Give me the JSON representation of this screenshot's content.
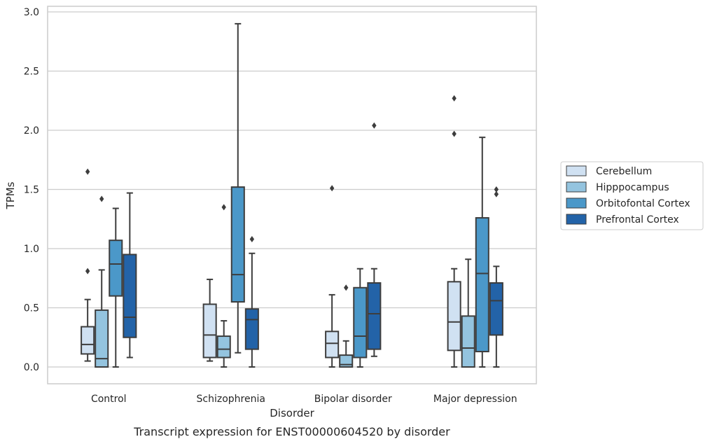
{
  "chart_data": {
    "type": "box",
    "caption": "Transcript expression for ENST00000604520 by disorder",
    "xlabel": "Disorder",
    "ylabel": "TPMs",
    "ylim": [
      -0.14,
      3.05
    ],
    "yticks": [
      "0.0",
      "0.5",
      "1.0",
      "1.5",
      "2.0",
      "2.5",
      "3.0"
    ],
    "grid": "horizontal",
    "legend_position": "right",
    "categories": [
      "Control",
      "Schizophrenia",
      "Bipolar disorder",
      "Major depression"
    ],
    "series": [
      {
        "name": "Cerebellum",
        "color": "#d0e1f2",
        "boxes": [
          {
            "whislo": 0.05,
            "q1": 0.11,
            "med": 0.19,
            "q3": 0.34,
            "whishi": 0.57,
            "fliers": [
              0.81,
              1.65
            ]
          },
          {
            "whislo": 0.05,
            "q1": 0.08,
            "med": 0.27,
            "q3": 0.53,
            "whishi": 0.74,
            "fliers": []
          },
          {
            "whislo": 0.0,
            "q1": 0.08,
            "med": 0.2,
            "q3": 0.3,
            "whishi": 0.61,
            "fliers": [
              1.51
            ]
          },
          {
            "whislo": 0.0,
            "q1": 0.14,
            "med": 0.38,
            "q3": 0.72,
            "whishi": 0.83,
            "fliers": [
              1.97,
              2.27
            ]
          }
        ]
      },
      {
        "name": "Hipppocampus",
        "color": "#94c4df",
        "boxes": [
          {
            "whislo": 0.0,
            "q1": 0.0,
            "med": 0.07,
            "q3": 0.48,
            "whishi": 0.82,
            "fliers": [
              1.42
            ]
          },
          {
            "whislo": 0.0,
            "q1": 0.08,
            "med": 0.15,
            "q3": 0.26,
            "whishi": 0.39,
            "fliers": [
              1.35
            ]
          },
          {
            "whislo": 0.0,
            "q1": 0.0,
            "med": 0.02,
            "q3": 0.1,
            "whishi": 0.22,
            "fliers": [
              0.67
            ]
          },
          {
            "whislo": 0.0,
            "q1": 0.0,
            "med": 0.16,
            "q3": 0.43,
            "whishi": 0.91,
            "fliers": []
          }
        ]
      },
      {
        "name": "Orbitofontal Cortex",
        "color": "#4b98c9",
        "boxes": [
          {
            "whislo": 0.0,
            "q1": 0.6,
            "med": 0.87,
            "q3": 1.07,
            "whishi": 1.34,
            "fliers": []
          },
          {
            "whislo": 0.12,
            "q1": 0.55,
            "med": 0.78,
            "q3": 1.52,
            "whishi": 2.9,
            "fliers": []
          },
          {
            "whislo": 0.0,
            "q1": 0.08,
            "med": 0.26,
            "q3": 0.67,
            "whishi": 0.83,
            "fliers": []
          },
          {
            "whislo": 0.0,
            "q1": 0.13,
            "med": 0.79,
            "q3": 1.26,
            "whishi": 1.94,
            "fliers": []
          }
        ]
      },
      {
        "name": "Prefrontal Cortex",
        "color": "#2363a8",
        "boxes": [
          {
            "whislo": 0.08,
            "q1": 0.25,
            "med": 0.42,
            "q3": 0.95,
            "whishi": 1.47,
            "fliers": []
          },
          {
            "whislo": 0.0,
            "q1": 0.15,
            "med": 0.4,
            "q3": 0.49,
            "whishi": 0.96,
            "fliers": [
              1.08
            ]
          },
          {
            "whislo": 0.09,
            "q1": 0.15,
            "med": 0.45,
            "q3": 0.71,
            "whishi": 0.83,
            "fliers": [
              2.04
            ]
          },
          {
            "whislo": 0.0,
            "q1": 0.27,
            "med": 0.56,
            "q3": 0.71,
            "whishi": 0.85,
            "fliers": [
              1.46,
              1.5
            ]
          }
        ]
      }
    ]
  }
}
